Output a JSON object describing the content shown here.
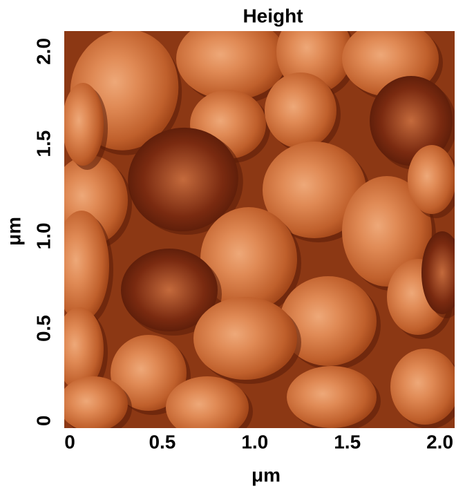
{
  "chart_data": {
    "type": "image",
    "title": "Height",
    "x_label": "μm",
    "y_label": "μm",
    "xlim": [
      -0.03,
      2.08
    ],
    "ylim": [
      -0.04,
      2.11
    ],
    "xticks": [
      0,
      0.5,
      {
        "value": 1,
        "label": "1.0"
      },
      1.5,
      {
        "value": 2,
        "label": "2.0"
      }
    ],
    "yticks": [
      0,
      0.5,
      {
        "value": 1,
        "label": "1.0"
      },
      1.5,
      {
        "value": 2,
        "label": "2.0"
      }
    ]
  }
}
